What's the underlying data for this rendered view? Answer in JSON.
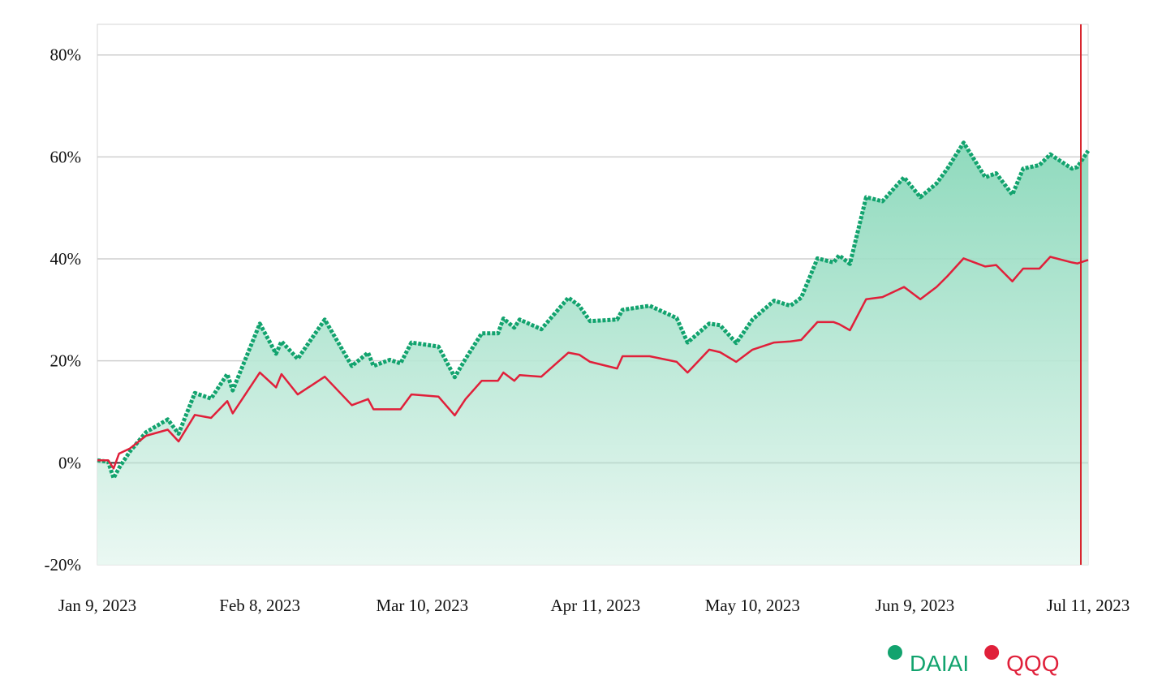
{
  "chart_data": {
    "type": "line",
    "x": [
      "2023-01-09",
      "2023-01-11",
      "2023-01-12",
      "2023-01-13",
      "2023-01-15",
      "2023-01-18",
      "2023-01-22",
      "2023-01-24",
      "2023-01-27",
      "2023-01-30",
      "2023-02-02",
      "2023-02-03",
      "2023-02-08",
      "2023-02-11",
      "2023-02-12",
      "2023-02-15",
      "2023-02-20",
      "2023-02-25",
      "2023-02-28",
      "2023-03-01",
      "2023-03-04",
      "2023-03-06",
      "2023-03-08",
      "2023-03-13",
      "2023-03-16",
      "2023-03-18",
      "2023-03-21",
      "2023-03-24",
      "2023-03-25",
      "2023-03-27",
      "2023-03-28",
      "2023-04-01",
      "2023-04-06",
      "2023-04-08",
      "2023-04-10",
      "2023-04-15",
      "2023-04-16",
      "2023-04-21",
      "2023-04-26",
      "2023-04-28",
      "2023-05-02",
      "2023-05-04",
      "2023-05-07",
      "2023-05-10",
      "2023-05-14",
      "2023-05-17",
      "2023-05-19",
      "2023-05-22",
      "2023-05-25",
      "2023-05-26",
      "2023-05-28",
      "2023-05-31",
      "2023-06-03",
      "2023-06-07",
      "2023-06-10",
      "2023-06-13",
      "2023-06-15",
      "2023-06-18",
      "2023-06-22",
      "2023-06-24",
      "2023-06-27",
      "2023-06-29",
      "2023-07-02",
      "2023-07-04",
      "2023-07-08",
      "2023-07-09",
      "2023-07-11"
    ],
    "series": [
      {
        "name": "DAIAI",
        "color": "#12a36e",
        "fill": true,
        "values": [
          0.5,
          0.2,
          -3,
          -1,
          2.2,
          6,
          8.5,
          5.7,
          13.7,
          12.6,
          17.4,
          14.2,
          27.3,
          21.4,
          23.8,
          20.4,
          28.1,
          19,
          21.6,
          19,
          20.2,
          19.5,
          23.6,
          22.8,
          16.8,
          20.4,
          25.4,
          25.4,
          28.3,
          26.5,
          28.1,
          26.2,
          32.4,
          30.8,
          27.8,
          28.1,
          30,
          30.8,
          28.4,
          23.6,
          27.3,
          27,
          23.5,
          28.1,
          31.8,
          30.8,
          32.4,
          40.1,
          39.3,
          40.7,
          39,
          52.1,
          51.3,
          56,
          52.1,
          54.8,
          57.7,
          62.8,
          56,
          56.8,
          52.6,
          57.7,
          58.4,
          60.5,
          57.7,
          58,
          61.2
        ]
      },
      {
        "name": "QQQ",
        "color": "#e0203a",
        "fill": false,
        "values": [
          0.5,
          0.5,
          -1.1,
          1.8,
          2.8,
          5.3,
          6.5,
          4.2,
          9.4,
          8.8,
          12.1,
          9.7,
          17.7,
          14.8,
          17.4,
          13.4,
          16.9,
          11.3,
          12.5,
          10.5,
          10.5,
          10.5,
          13.4,
          13,
          9.3,
          12.5,
          16.1,
          16.1,
          17.7,
          16.1,
          17.2,
          16.9,
          21.6,
          21.2,
          19.8,
          18.5,
          20.9,
          20.9,
          19.8,
          17.7,
          22.2,
          21.7,
          19.8,
          22.2,
          23.6,
          23.8,
          24.1,
          27.6,
          27.6,
          27.2,
          26,
          32.1,
          32.5,
          34.5,
          32.1,
          34.5,
          36.6,
          40.1,
          38.5,
          38.8,
          35.6,
          38.1,
          38.1,
          40.4,
          39.3,
          39.1,
          39.8
        ]
      }
    ],
    "xlim": [
      "2023-01-09",
      "2023-07-11"
    ],
    "xticks": [
      {
        "value": "2023-01-09",
        "label": "Jan 9, 2023"
      },
      {
        "value": "2023-02-08",
        "label": "Feb 8, 2023"
      },
      {
        "value": "2023-03-10",
        "label": "Mar 10, 2023"
      },
      {
        "value": "2023-04-11",
        "label": "Apr 11, 2023"
      },
      {
        "value": "2023-05-10",
        "label": "May 10, 2023"
      },
      {
        "value": "2023-06-09",
        "label": "Jun 9, 2023"
      },
      {
        "value": "2023-07-11",
        "label": "Jul 11, 2023"
      }
    ],
    "ylim": [
      -20,
      86
    ],
    "yticks": [
      {
        "value": -20,
        "label": "-20%"
      },
      {
        "value": 0,
        "label": "0%"
      },
      {
        "value": 20,
        "label": "20%"
      },
      {
        "value": 40,
        "label": "40%"
      },
      {
        "value": 60,
        "label": "60%"
      },
      {
        "value": 80,
        "label": "80%"
      }
    ],
    "grid": true
  }
}
